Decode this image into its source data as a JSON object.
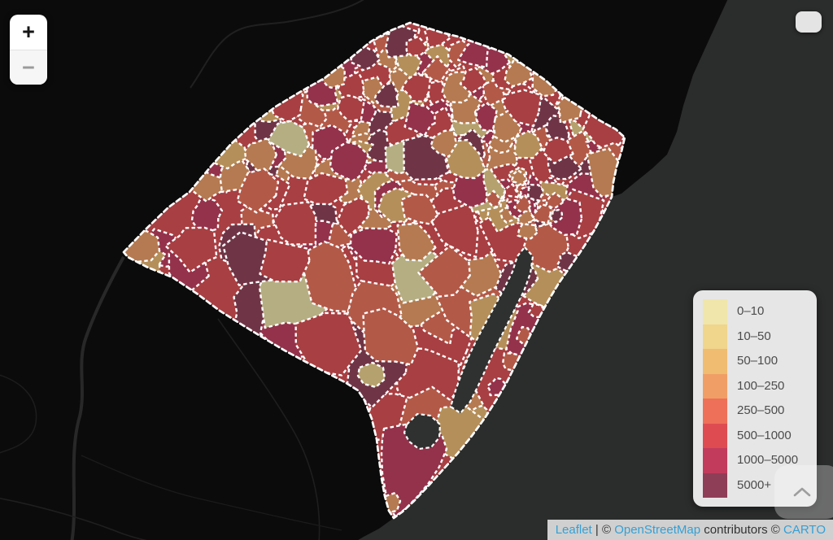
{
  "controls": {
    "zoom_in": "+",
    "zoom_out": "−"
  },
  "legend": {
    "bins": [
      {
        "label": "0–10",
        "color": "#f0e6ab"
      },
      {
        "label": "10–50",
        "color": "#f0d58d"
      },
      {
        "label": "50–100",
        "color": "#f0bc72"
      },
      {
        "label": "100–250",
        "color": "#f09e66"
      },
      {
        "label": "250–500",
        "color": "#ee7059"
      },
      {
        "label": "500–1000",
        "color": "#de4c51"
      },
      {
        "label": "1000–5000",
        "color": "#c23b5d"
      },
      {
        "label": "5000+",
        "color": "#8f3e57"
      }
    ]
  },
  "attribution": {
    "leaflet": "Leaflet",
    "sep": " | © ",
    "osm": "OpenStreetMap",
    "contrib": " contributors © ",
    "carto": "CARTO",
    "link_color": "#35a0d5"
  },
  "map_colors": {
    "land": "#0b0b0b",
    "ocean": "#2b2c2c",
    "water": "#2f3030",
    "border": "#ffffff"
  }
}
